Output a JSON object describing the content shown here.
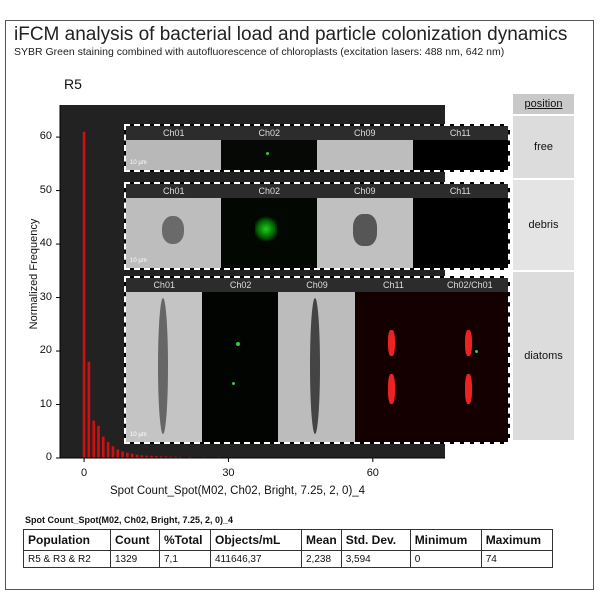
{
  "header": {
    "title": "iFCM analysis of bacterial load and particle colonization dynamics",
    "subtitle": "SYBR Green staining combined with autofluorescence of chloroplasts (excitation lasers: 488 nm, 642 nm)"
  },
  "plot_label": "R5",
  "chart_data": {
    "type": "bar",
    "ylabel": "Normalized Frequency",
    "xlabel": "Spot Count_Spot(M02, Ch02, Bright, 7.25, 2, 0)_4",
    "xlim": [
      -5,
      75
    ],
    "ylim": [
      0,
      66
    ],
    "xticks": [
      0,
      30,
      60
    ],
    "yticks": [
      0,
      10,
      20,
      30,
      40,
      50,
      60
    ],
    "bar_color": "#cc1111",
    "background": "#222222",
    "x": [
      0,
      1,
      2,
      3,
      4,
      5,
      6,
      7,
      8,
      9,
      10,
      11,
      12,
      13,
      14,
      15,
      16,
      17,
      18,
      19,
      20,
      22,
      25,
      28,
      32,
      36,
      40,
      45,
      50,
      55,
      60,
      65,
      70,
      74
    ],
    "values": [
      61,
      18,
      7,
      6,
      4,
      3,
      2.2,
      1.6,
      1.2,
      1,
      0.8,
      0.6,
      0.5,
      0.45,
      0.4,
      0.35,
      0.3,
      0.3,
      0.25,
      0.25,
      0.2,
      0.2,
      0.15,
      0.15,
      0.12,
      0.1,
      0.1,
      0.08,
      0.08,
      0.06,
      0.06,
      0.05,
      0.05,
      0.05
    ]
  },
  "position": {
    "header": "position",
    "rows": [
      "free",
      "debris",
      "diatoms"
    ]
  },
  "image_panels": [
    {
      "channels": [
        "Ch01",
        "Ch02",
        "Ch09",
        "Ch11"
      ],
      "scale": "10 µm"
    },
    {
      "channels": [
        "Ch01",
        "Ch02",
        "Ch09",
        "Ch11"
      ],
      "scale": "10 µm"
    },
    {
      "channels": [
        "Ch01",
        "Ch02",
        "Ch09",
        "Ch11",
        "Ch02/Ch01"
      ],
      "scale": "10 µm"
    }
  ],
  "table": {
    "caption": "Spot Count_Spot(M02, Ch02, Bright, 7.25, 2, 0)_4",
    "headers": [
      "Population",
      "Count",
      "%Total",
      "Objects/mL",
      "Mean",
      "Std. Dev.",
      "Minimum",
      "Maximum"
    ],
    "row": [
      "R5 & R3 & R2",
      "1329",
      "7,1",
      "411646,37",
      "2,238",
      "3,594",
      "0",
      "74"
    ]
  }
}
